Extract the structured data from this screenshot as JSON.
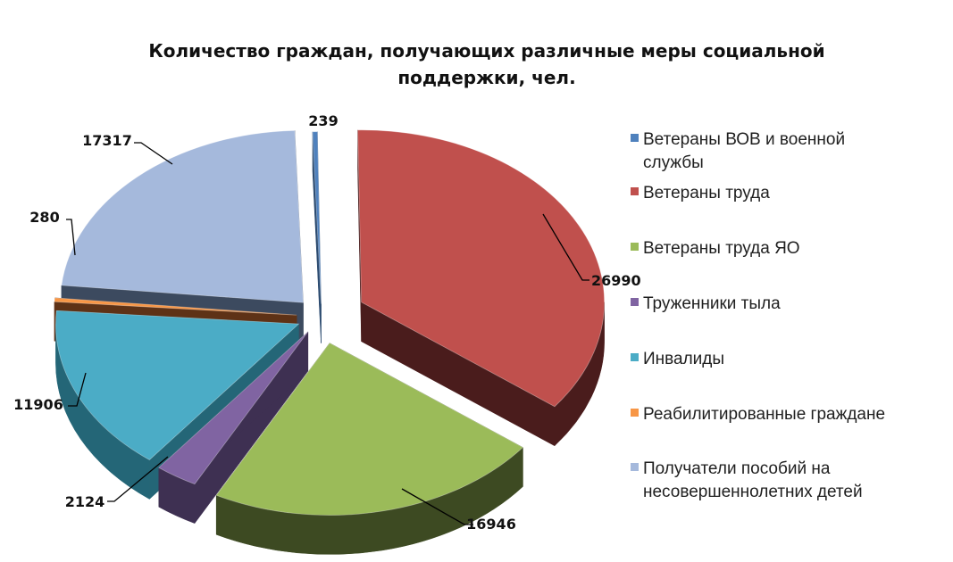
{
  "chart_data": {
    "type": "pie",
    "title_lines": [
      "Количество граждан, получающих различные меры социальной",
      "поддержки, чел."
    ],
    "slices": [
      {
        "name_lines": [
          "Ветераны ВОВ и военной",
          "службы"
        ],
        "value": 239,
        "color": "#4f81bd",
        "side_color": "#2b4a6f",
        "data_label": "239"
      },
      {
        "name_lines": [
          "Ветераны труда"
        ],
        "value": 26990,
        "color": "#c0504d",
        "side_color": "#4a1c1c",
        "data_label": "26990"
      },
      {
        "name_lines": [
          "Ветераны труда ЯО"
        ],
        "value": 16946,
        "color": "#9bbb59",
        "side_color": "#3d4a22",
        "data_label": "16946"
      },
      {
        "name_lines": [
          "Труженники тыла"
        ],
        "value": 2124,
        "color": "#8064a2",
        "side_color": "#3e3052",
        "data_label": "2124"
      },
      {
        "name_lines": [
          "Инвалиды"
        ],
        "value": 11906,
        "color": "#4bacc6",
        "side_color": "#246677",
        "data_label": "11906"
      },
      {
        "name_lines": [
          "Реабилитированные граждане"
        ],
        "value": 280,
        "color": "#f79646",
        "side_color": "#5e3216",
        "data_label": "280"
      },
      {
        "name_lines": [
          "Получатели пособий на",
          "несовершеннолетних детей"
        ],
        "value": 17317,
        "color": "#a5b9dc",
        "side_color": "#3c4a5f",
        "data_label": "17317"
      }
    ],
    "legend_position": "right",
    "exploded": true,
    "three_d": true
  }
}
